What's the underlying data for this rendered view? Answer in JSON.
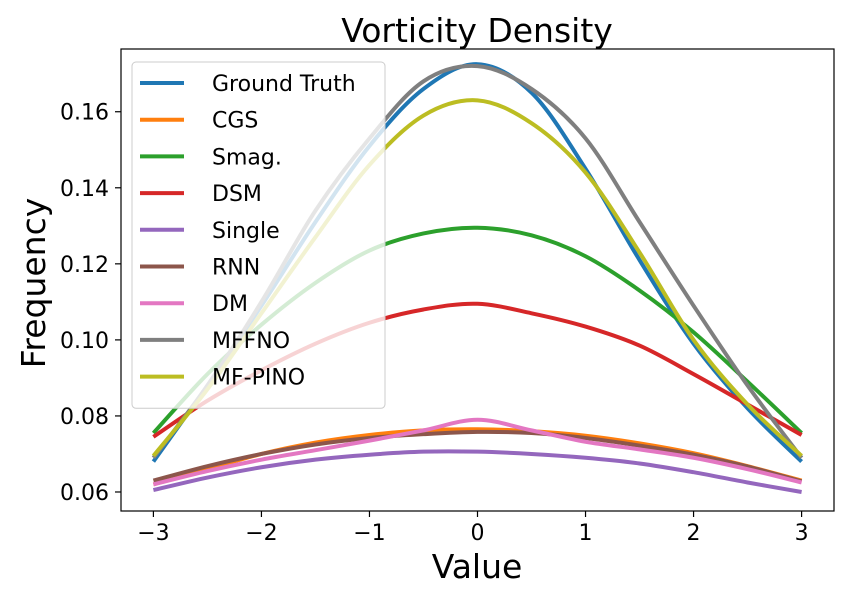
{
  "chart_data": {
    "type": "line",
    "title": "Vorticity Density",
    "xlabel": "Value",
    "ylabel": "Frequency",
    "xlim": [
      -3.3,
      3.3
    ],
    "ylim": [
      0.055,
      0.1765
    ],
    "xticks": [
      -3,
      -2,
      -1,
      0,
      1,
      2,
      3
    ],
    "xtick_labels": [
      "−3",
      "−2",
      "−1",
      "0",
      "1",
      "2",
      "3"
    ],
    "yticks": [
      0.06,
      0.08,
      0.1,
      0.12,
      0.14,
      0.16
    ],
    "ytick_labels": [
      "0.06",
      "0.08",
      "0.10",
      "0.12",
      "0.14",
      "0.16"
    ],
    "legend_position": "top-left",
    "series": [
      {
        "name": "Ground Truth",
        "color": "#1f77b4",
        "x": [
          -3,
          -2.5,
          -2,
          -1.5,
          -1,
          -0.5,
          0,
          0.5,
          1,
          1.5,
          2,
          2.5,
          3
        ],
        "y": [
          0.068,
          0.088,
          0.109,
          0.131,
          0.151,
          0.166,
          0.1725,
          0.165,
          0.145,
          0.121,
          0.099,
          0.082,
          0.068
        ]
      },
      {
        "name": "CGS",
        "color": "#ff7f0e",
        "x": [
          -3,
          -2.5,
          -2,
          -1.5,
          -1,
          -0.5,
          0,
          0.5,
          1,
          1.5,
          2,
          2.5,
          3
        ],
        "y": [
          0.062,
          0.066,
          0.07,
          0.073,
          0.075,
          0.0762,
          0.0765,
          0.076,
          0.0748,
          0.0728,
          0.0702,
          0.0668,
          0.063
        ]
      },
      {
        "name": "Smag.",
        "color": "#2ca02c",
        "x": [
          -3,
          -2.5,
          -2,
          -1.5,
          -1,
          -0.5,
          0,
          0.5,
          1,
          1.5,
          2,
          2.5,
          3
        ],
        "y": [
          0.0755,
          0.091,
          0.104,
          0.115,
          0.1235,
          0.128,
          0.1295,
          0.1275,
          0.122,
          0.113,
          0.102,
          0.089,
          0.0755
        ]
      },
      {
        "name": "DSM",
        "color": "#d62728",
        "x": [
          -3,
          -2.5,
          -2,
          -1.5,
          -1,
          -0.5,
          0,
          0.5,
          1,
          1.5,
          2,
          2.5,
          3
        ],
        "y": [
          0.0745,
          0.084,
          0.092,
          0.099,
          0.1045,
          0.108,
          0.1095,
          0.107,
          0.1035,
          0.0985,
          0.091,
          0.083,
          0.075
        ]
      },
      {
        "name": "Single",
        "color": "#9467bd",
        "x": [
          -3,
          -2.5,
          -2,
          -1.5,
          -1,
          -0.5,
          0,
          0.5,
          1,
          1.5,
          2,
          2.5,
          3
        ],
        "y": [
          0.0605,
          0.0638,
          0.0665,
          0.0685,
          0.0698,
          0.0706,
          0.0706,
          0.07,
          0.069,
          0.0675,
          0.0652,
          0.0625,
          0.06
        ]
      },
      {
        "name": "RNN",
        "color": "#8c564b",
        "x": [
          -3,
          -2.5,
          -2,
          -1.5,
          -1,
          -0.5,
          0,
          0.5,
          1,
          1.5,
          2,
          2.5,
          3
        ],
        "y": [
          0.063,
          0.0668,
          0.07,
          0.0725,
          0.0742,
          0.0752,
          0.0758,
          0.0755,
          0.0742,
          0.0722,
          0.0698,
          0.0667,
          0.0628
        ]
      },
      {
        "name": "DM",
        "color": "#e377c2",
        "x": [
          -3,
          -2.5,
          -2,
          -1.5,
          -1,
          -0.5,
          0,
          0.5,
          1,
          1.5,
          2,
          2.5,
          3
        ],
        "y": [
          0.062,
          0.0655,
          0.0685,
          0.071,
          0.0735,
          0.0762,
          0.079,
          0.0762,
          0.0732,
          0.0712,
          0.069,
          0.066,
          0.0625
        ]
      },
      {
        "name": "MFFNO",
        "color": "#7f7f7f",
        "x": [
          -3,
          -2.5,
          -2,
          -1.5,
          -1,
          -0.5,
          0,
          0.5,
          1,
          1.5,
          2,
          2.5,
          3
        ],
        "y": [
          0.069,
          0.088,
          0.11,
          0.134,
          0.153,
          0.168,
          0.172,
          0.166,
          0.153,
          0.131,
          0.109,
          0.088,
          0.069
        ]
      },
      {
        "name": "MF-PINO",
        "color": "#bcbd22",
        "x": [
          -3,
          -2.5,
          -2,
          -1.5,
          -1,
          -0.5,
          0,
          0.5,
          1,
          1.5,
          2,
          2.5,
          3
        ],
        "y": [
          0.0695,
          0.087,
          0.107,
          0.127,
          0.146,
          0.159,
          0.163,
          0.157,
          0.144,
          0.123,
          0.1,
          0.083,
          0.0695
        ]
      }
    ]
  }
}
